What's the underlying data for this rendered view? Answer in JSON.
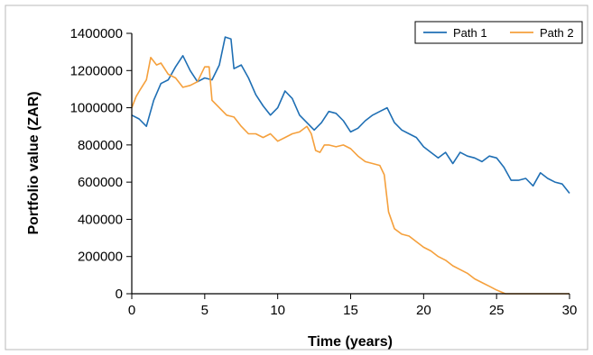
{
  "chart_data": {
    "type": "line",
    "title": "",
    "xlabel": "Time (years)",
    "ylabel": "Portfolio value (ZAR)",
    "xlim": [
      0,
      30
    ],
    "ylim": [
      0,
      1400000
    ],
    "x_ticks": [
      0,
      5,
      10,
      15,
      20,
      25,
      30
    ],
    "y_ticks": [
      0,
      200000,
      400000,
      600000,
      800000,
      1000000,
      1200000,
      1400000
    ],
    "grid": false,
    "legend": "top-right",
    "series": [
      {
        "name": "Path 1",
        "color": "#1f6fb4",
        "points": [
          [
            0,
            960000
          ],
          [
            0.5,
            940000
          ],
          [
            1,
            900000
          ],
          [
            1.5,
            1040000
          ],
          [
            2,
            1130000
          ],
          [
            2.5,
            1150000
          ],
          [
            3,
            1220000
          ],
          [
            3.5,
            1280000
          ],
          [
            4,
            1200000
          ],
          [
            4.5,
            1140000
          ],
          [
            5,
            1160000
          ],
          [
            5.5,
            1150000
          ],
          [
            6,
            1230000
          ],
          [
            6.4,
            1380000
          ],
          [
            6.8,
            1370000
          ],
          [
            7,
            1210000
          ],
          [
            7.5,
            1230000
          ],
          [
            8,
            1160000
          ],
          [
            8.5,
            1070000
          ],
          [
            9,
            1010000
          ],
          [
            9.5,
            960000
          ],
          [
            10,
            1000000
          ],
          [
            10.5,
            1090000
          ],
          [
            11,
            1050000
          ],
          [
            11.5,
            960000
          ],
          [
            12,
            920000
          ],
          [
            12.5,
            880000
          ],
          [
            13,
            920000
          ],
          [
            13.5,
            980000
          ],
          [
            14,
            970000
          ],
          [
            14.5,
            930000
          ],
          [
            15,
            870000
          ],
          [
            15.5,
            890000
          ],
          [
            16,
            930000
          ],
          [
            16.5,
            960000
          ],
          [
            17,
            980000
          ],
          [
            17.5,
            1000000
          ],
          [
            18,
            920000
          ],
          [
            18.5,
            880000
          ],
          [
            19,
            860000
          ],
          [
            19.5,
            840000
          ],
          [
            20,
            790000
          ],
          [
            20.5,
            760000
          ],
          [
            21,
            730000
          ],
          [
            21.5,
            760000
          ],
          [
            22,
            700000
          ],
          [
            22.5,
            760000
          ],
          [
            23,
            740000
          ],
          [
            23.5,
            730000
          ],
          [
            24,
            710000
          ],
          [
            24.5,
            740000
          ],
          [
            25,
            730000
          ],
          [
            25.5,
            680000
          ],
          [
            26,
            610000
          ],
          [
            26.5,
            610000
          ],
          [
            27,
            620000
          ],
          [
            27.5,
            580000
          ],
          [
            28,
            650000
          ],
          [
            28.5,
            620000
          ],
          [
            29,
            600000
          ],
          [
            29.5,
            590000
          ],
          [
            30,
            540000
          ]
        ]
      },
      {
        "name": "Path 2",
        "color": "#f5a03c",
        "points": [
          [
            0,
            1000000
          ],
          [
            0.3,
            1060000
          ],
          [
            0.6,
            1100000
          ],
          [
            1,
            1150000
          ],
          [
            1.3,
            1270000
          ],
          [
            1.7,
            1230000
          ],
          [
            2,
            1240000
          ],
          [
            2.5,
            1180000
          ],
          [
            3,
            1160000
          ],
          [
            3.5,
            1110000
          ],
          [
            4,
            1120000
          ],
          [
            4.5,
            1140000
          ],
          [
            5,
            1220000
          ],
          [
            5.3,
            1220000
          ],
          [
            5.5,
            1040000
          ],
          [
            6,
            1000000
          ],
          [
            6.5,
            960000
          ],
          [
            7,
            950000
          ],
          [
            7.5,
            900000
          ],
          [
            8,
            860000
          ],
          [
            8.5,
            860000
          ],
          [
            9,
            840000
          ],
          [
            9.5,
            860000
          ],
          [
            10,
            820000
          ],
          [
            10.5,
            840000
          ],
          [
            11,
            860000
          ],
          [
            11.5,
            870000
          ],
          [
            12,
            900000
          ],
          [
            12.3,
            860000
          ],
          [
            12.6,
            770000
          ],
          [
            12.9,
            760000
          ],
          [
            13.2,
            800000
          ],
          [
            13.5,
            800000
          ],
          [
            14,
            790000
          ],
          [
            14.5,
            800000
          ],
          [
            15,
            780000
          ],
          [
            15.5,
            740000
          ],
          [
            16,
            710000
          ],
          [
            16.5,
            700000
          ],
          [
            17,
            690000
          ],
          [
            17.3,
            640000
          ],
          [
            17.6,
            440000
          ],
          [
            18,
            350000
          ],
          [
            18.5,
            320000
          ],
          [
            19,
            310000
          ],
          [
            19.5,
            280000
          ],
          [
            20,
            250000
          ],
          [
            20.5,
            230000
          ],
          [
            21,
            200000
          ],
          [
            21.5,
            180000
          ],
          [
            22,
            150000
          ],
          [
            22.5,
            130000
          ],
          [
            23,
            110000
          ],
          [
            23.5,
            80000
          ],
          [
            24,
            60000
          ],
          [
            24.5,
            40000
          ],
          [
            25,
            20000
          ],
          [
            25.6,
            0
          ],
          [
            26,
            0
          ],
          [
            27,
            0
          ],
          [
            28,
            0
          ],
          [
            29,
            0
          ],
          [
            30,
            0
          ]
        ]
      }
    ]
  }
}
